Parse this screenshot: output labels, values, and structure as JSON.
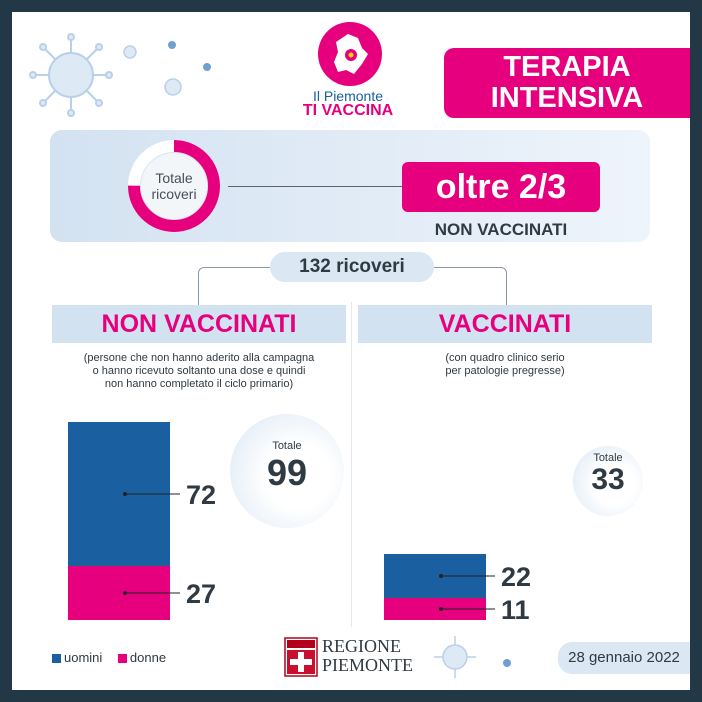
{
  "colors": {
    "accent": "#e6007e",
    "uomini": "#1a5fa0",
    "donne": "#e6007e",
    "dark": "#2f3a42",
    "band": "#d3e2f1"
  },
  "logo": {
    "line1": "Il Piemonte",
    "line2": "TI VACCINA"
  },
  "title": {
    "line1": "TERAPIA",
    "line2": "INTENSIVA"
  },
  "summary": {
    "donut_label_1": "Totale",
    "donut_label_2": "ricoveri",
    "fraction": "oltre 2/3",
    "fraction_sub": "NON VACCINATI"
  },
  "total_pill": "132 ricoveri",
  "groups": {
    "left": {
      "header": "NON VACCINATI",
      "note_1": "(persone che non hanno aderito alla campagna",
      "note_2": "o hanno ricevuto soltanto una dose e quindi",
      "note_3": "non hanno completato il ciclo primario)",
      "total_label": "Totale",
      "total_value": "99"
    },
    "right": {
      "header": "VACCINATI",
      "note_1": "(con quadro clinico serio",
      "note_2": "per patologie pregresse)",
      "total_label": "Totale",
      "total_value": "33"
    }
  },
  "chart_data": {
    "type": "bar",
    "stacked": true,
    "categories": [
      "NON VACCINATI",
      "VACCINATI"
    ],
    "series": [
      {
        "name": "uomini",
        "values": [
          72,
          22
        ]
      },
      {
        "name": "donne",
        "values": [
          27,
          11
        ]
      }
    ],
    "totals": [
      99,
      33
    ],
    "legend_position": "bottom-left"
  },
  "legend": {
    "uomini": "uomini",
    "donne": "donne"
  },
  "footer": {
    "region_1": "REGIONE",
    "region_2": "PIEMONTE",
    "date": "28 gennaio 2022"
  }
}
